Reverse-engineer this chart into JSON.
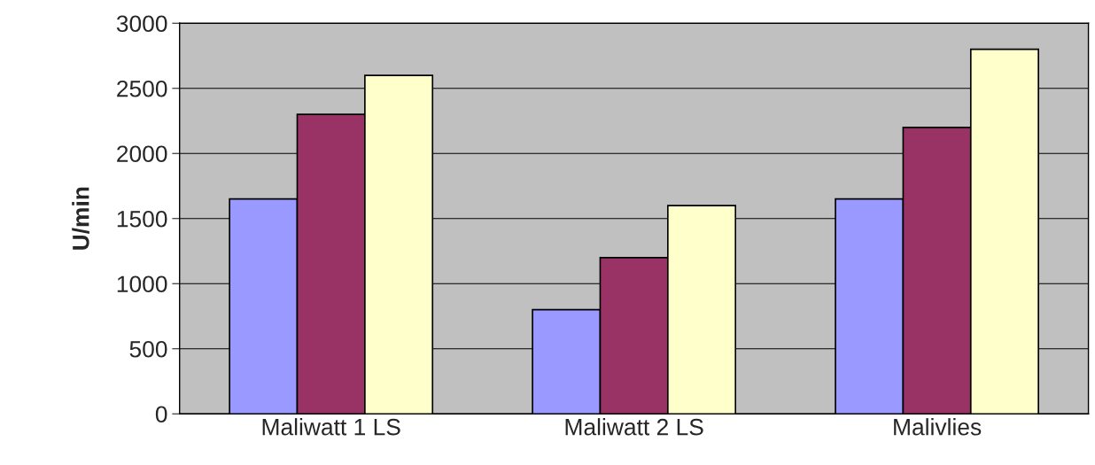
{
  "chart_data": {
    "type": "bar",
    "ylabel": "U/min",
    "categories": [
      "Maliwatt 1 LS",
      "Maliwatt 2 LS",
      "Malivlies"
    ],
    "series": [
      {
        "color": "#9999ff",
        "values": [
          1650,
          800,
          1650
        ]
      },
      {
        "color": "#993366",
        "values": [
          2300,
          1200,
          2200
        ]
      },
      {
        "color": "#ffffcc",
        "values": [
          2600,
          1600,
          2800
        ]
      }
    ],
    "ylim": [
      0,
      3000
    ],
    "yticks": [
      0,
      500,
      1000,
      1500,
      2000,
      2500,
      3000
    ],
    "grid": "y",
    "legend": false
  }
}
